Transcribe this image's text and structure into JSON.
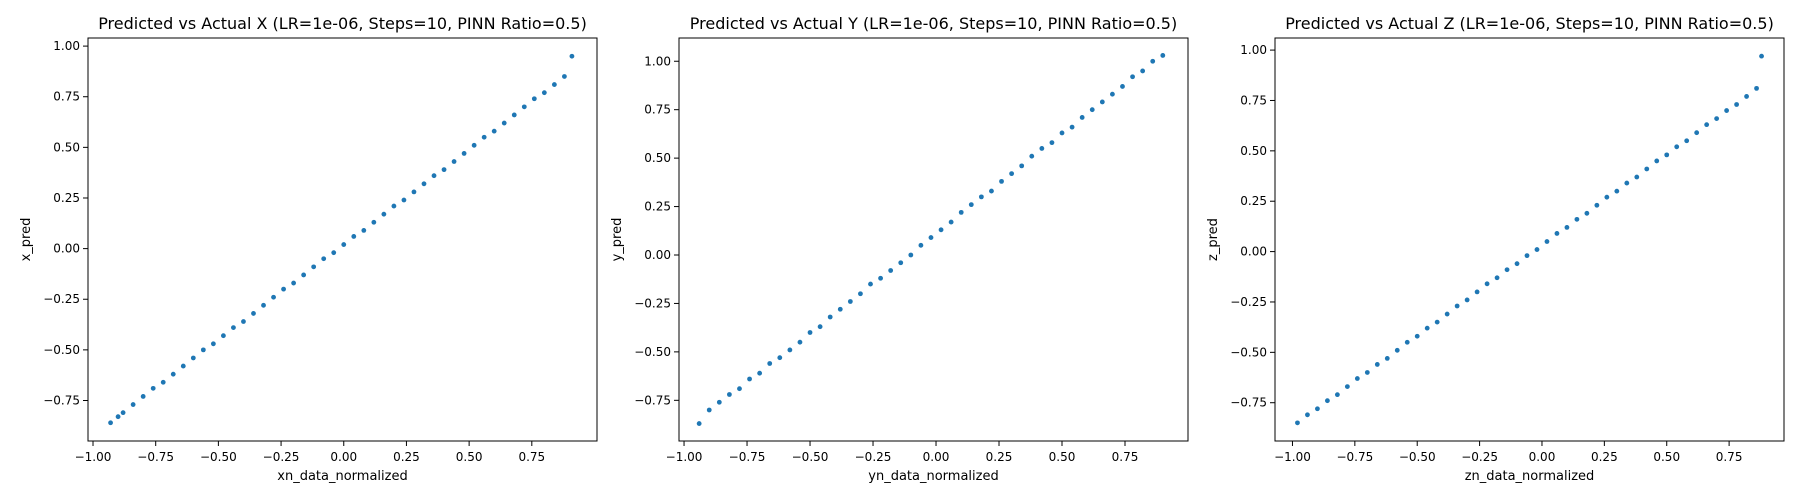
{
  "chart_data": [
    {
      "type": "scatter",
      "title": "Predicted vs Actual X (LR=1e-06, Steps=10, PINN Ratio=0.5)",
      "xlabel": "xn_data_normalized",
      "ylabel": "x_pred",
      "xlim": [
        -1.02,
        1.01
      ],
      "ylim": [
        -0.95,
        1.04
      ],
      "xticks": [
        -1.0,
        -0.75,
        -0.5,
        -0.25,
        0.0,
        0.25,
        0.5,
        0.75
      ],
      "xtick_labels": [
        "−1.00",
        "−0.75",
        "−0.50",
        "−0.25",
        "0.00",
        "0.25",
        "0.50",
        "0.75"
      ],
      "yticks": [
        -0.75,
        -0.5,
        -0.25,
        0.0,
        0.25,
        0.5,
        0.75,
        1.0
      ],
      "ytick_labels": [
        "−0.75",
        "−0.50",
        "−0.25",
        "0.00",
        "0.25",
        "0.50",
        "0.75",
        "1.00"
      ],
      "color": "#1f77b4",
      "grid": false,
      "x": [
        -0.93,
        -0.9,
        -0.88,
        -0.84,
        -0.8,
        -0.76,
        -0.72,
        -0.68,
        -0.64,
        -0.6,
        -0.56,
        -0.52,
        -0.48,
        -0.44,
        -0.4,
        -0.36,
        -0.32,
        -0.28,
        -0.24,
        -0.2,
        -0.16,
        -0.12,
        -0.08,
        -0.04,
        0.0,
        0.04,
        0.08,
        0.12,
        0.16,
        0.2,
        0.24,
        0.28,
        0.32,
        0.36,
        0.4,
        0.44,
        0.48,
        0.52,
        0.56,
        0.6,
        0.64,
        0.68,
        0.72,
        0.76,
        0.8,
        0.84,
        0.88,
        0.91
      ],
      "y": [
        -0.86,
        -0.83,
        -0.81,
        -0.77,
        -0.73,
        -0.69,
        -0.66,
        -0.62,
        -0.58,
        -0.54,
        -0.5,
        -0.47,
        -0.43,
        -0.39,
        -0.36,
        -0.32,
        -0.28,
        -0.24,
        -0.2,
        -0.17,
        -0.13,
        -0.09,
        -0.05,
        -0.02,
        0.02,
        0.06,
        0.09,
        0.13,
        0.17,
        0.21,
        0.24,
        0.28,
        0.32,
        0.36,
        0.39,
        0.43,
        0.47,
        0.51,
        0.55,
        0.58,
        0.62,
        0.66,
        0.7,
        0.74,
        0.77,
        0.81,
        0.85,
        0.95
      ]
    },
    {
      "type": "scatter",
      "title": "Predicted vs Actual Y (LR=1e-06, Steps=10, PINN Ratio=0.5)",
      "xlabel": "yn_data_normalized",
      "ylabel": "y_pred",
      "xlim": [
        -1.02,
        1.0
      ],
      "ylim": [
        -0.96,
        1.12
      ],
      "xticks": [
        -1.0,
        -0.75,
        -0.5,
        -0.25,
        0.0,
        0.25,
        0.5,
        0.75
      ],
      "xtick_labels": [
        "−1.00",
        "−0.75",
        "−0.50",
        "−0.25",
        "0.00",
        "0.25",
        "0.50",
        "0.75"
      ],
      "yticks": [
        -0.75,
        -0.5,
        -0.25,
        0.0,
        0.25,
        0.5,
        0.75,
        1.0
      ],
      "ytick_labels": [
        "−0.75",
        "−0.50",
        "−0.25",
        "0.00",
        "0.25",
        "0.50",
        "0.75",
        "1.00"
      ],
      "color": "#1f77b4",
      "grid": false,
      "x": [
        -0.94,
        -0.9,
        -0.86,
        -0.82,
        -0.78,
        -0.74,
        -0.7,
        -0.66,
        -0.62,
        -0.58,
        -0.54,
        -0.5,
        -0.46,
        -0.42,
        -0.38,
        -0.34,
        -0.3,
        -0.26,
        -0.22,
        -0.18,
        -0.14,
        -0.1,
        -0.06,
        -0.02,
        0.02,
        0.06,
        0.1,
        0.14,
        0.18,
        0.22,
        0.26,
        0.3,
        0.34,
        0.38,
        0.42,
        0.46,
        0.5,
        0.54,
        0.58,
        0.62,
        0.66,
        0.7,
        0.74,
        0.78,
        0.82,
        0.86,
        0.9
      ],
      "y": [
        -0.87,
        -0.8,
        -0.76,
        -0.72,
        -0.69,
        -0.64,
        -0.61,
        -0.56,
        -0.53,
        -0.49,
        -0.45,
        -0.4,
        -0.37,
        -0.32,
        -0.28,
        -0.24,
        -0.2,
        -0.15,
        -0.12,
        -0.08,
        -0.04,
        0.0,
        0.05,
        0.09,
        0.13,
        0.17,
        0.22,
        0.26,
        0.3,
        0.33,
        0.38,
        0.42,
        0.46,
        0.51,
        0.55,
        0.58,
        0.63,
        0.66,
        0.71,
        0.75,
        0.79,
        0.83,
        0.87,
        0.92,
        0.95,
        1.0,
        1.03
      ]
    },
    {
      "type": "scatter",
      "title": "Predicted vs Actual Z (LR=1e-06, Steps=10, PINN Ratio=0.5)",
      "xlabel": "zn_data_normalized",
      "ylabel": "z_pred",
      "xlim": [
        -1.07,
        0.97
      ],
      "ylim": [
        -0.94,
        1.06
      ],
      "xticks": [
        -1.0,
        -0.75,
        -0.5,
        -0.25,
        0.0,
        0.25,
        0.5,
        0.75
      ],
      "xtick_labels": [
        "−1.00",
        "−0.75",
        "−0.50",
        "−0.25",
        "0.00",
        "0.25",
        "0.50",
        "0.75"
      ],
      "yticks": [
        -0.75,
        -0.5,
        -0.25,
        0.0,
        0.25,
        0.5,
        0.75,
        1.0
      ],
      "ytick_labels": [
        "−0.75",
        "−0.50",
        "−0.25",
        "0.00",
        "0.25",
        "0.50",
        "0.75",
        "1.00"
      ],
      "color": "#1f77b4",
      "grid": false,
      "x": [
        -0.98,
        -0.94,
        -0.9,
        -0.86,
        -0.82,
        -0.78,
        -0.74,
        -0.7,
        -0.66,
        -0.62,
        -0.58,
        -0.54,
        -0.5,
        -0.46,
        -0.42,
        -0.38,
        -0.34,
        -0.3,
        -0.26,
        -0.22,
        -0.18,
        -0.14,
        -0.1,
        -0.06,
        -0.02,
        0.02,
        0.06,
        0.1,
        0.14,
        0.18,
        0.22,
        0.26,
        0.3,
        0.34,
        0.38,
        0.42,
        0.46,
        0.5,
        0.54,
        0.58,
        0.62,
        0.66,
        0.7,
        0.74,
        0.78,
        0.82,
        0.86,
        0.88
      ],
      "y": [
        -0.85,
        -0.81,
        -0.78,
        -0.74,
        -0.71,
        -0.67,
        -0.63,
        -0.6,
        -0.56,
        -0.53,
        -0.49,
        -0.45,
        -0.42,
        -0.38,
        -0.35,
        -0.31,
        -0.27,
        -0.24,
        -0.2,
        -0.16,
        -0.13,
        -0.09,
        -0.06,
        -0.02,
        0.01,
        0.05,
        0.09,
        0.12,
        0.16,
        0.19,
        0.23,
        0.27,
        0.3,
        0.34,
        0.37,
        0.41,
        0.45,
        0.48,
        0.52,
        0.55,
        0.59,
        0.63,
        0.66,
        0.7,
        0.73,
        0.77,
        0.81,
        0.97
      ]
    }
  ]
}
